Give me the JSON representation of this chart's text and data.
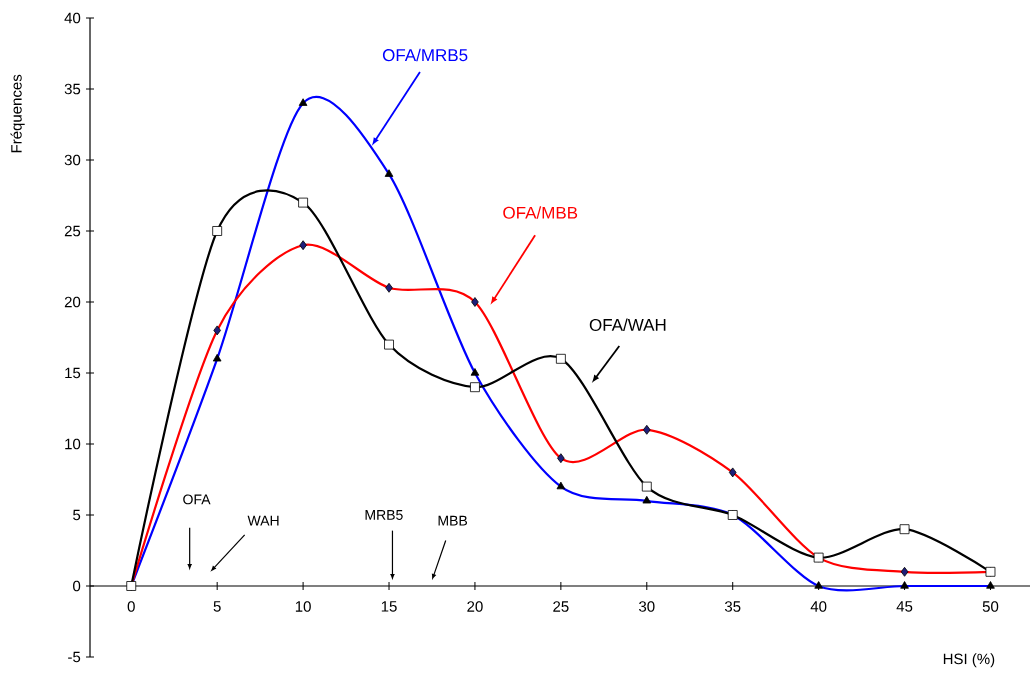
{
  "chart_data": {
    "type": "line",
    "xlabel": "HSI (%)",
    "ylabel": "Fréquences",
    "x": [
      0,
      5,
      10,
      15,
      20,
      25,
      30,
      35,
      40,
      45,
      50
    ],
    "series": [
      {
        "name": "OFA/MRB5",
        "color": "#0000ff",
        "marker": "triangle",
        "values": [
          0,
          16,
          34,
          29,
          15,
          7,
          6,
          5,
          0,
          0,
          0
        ]
      },
      {
        "name": "OFA/MBB",
        "color": "#ff0000",
        "marker": "diamond",
        "values": [
          0,
          18,
          24,
          21,
          20,
          9,
          11,
          8,
          2,
          1,
          1
        ]
      },
      {
        "name": "OFA/WAH",
        "color": "#000000",
        "marker": "square",
        "values": [
          0,
          25,
          27,
          17,
          14,
          16,
          7,
          5,
          2,
          4,
          1
        ]
      }
    ],
    "xlim": [
      -2.4,
      52.3
    ],
    "ylim": [
      -5,
      40
    ],
    "xticks": [
      0,
      5,
      10,
      15,
      20,
      25,
      30,
      35,
      40,
      45,
      50
    ],
    "yticks": [
      -5,
      0,
      5,
      10,
      15,
      20,
      25,
      30,
      35,
      40
    ],
    "annotations": [
      "OFA",
      "WAH",
      "MRB5",
      "MBB"
    ]
  }
}
